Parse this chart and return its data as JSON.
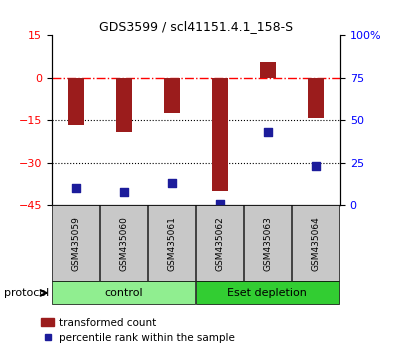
{
  "title": "GDS3599 / scl41151.4.1_158-S",
  "samples": [
    "GSM435059",
    "GSM435060",
    "GSM435061",
    "GSM435062",
    "GSM435063",
    "GSM435064"
  ],
  "transformed_count": [
    -16.5,
    -19.0,
    -12.5,
    -40.0,
    5.5,
    -14.0
  ],
  "percentile_rank": [
    10.0,
    8.0,
    13.0,
    1.0,
    43.0,
    23.0
  ],
  "left_ylim": [
    -45,
    15
  ],
  "left_yticks": [
    -45,
    -30,
    -15,
    0,
    15
  ],
  "right_ylim": [
    0,
    100
  ],
  "right_yticks": [
    0,
    25,
    50,
    75,
    100
  ],
  "bar_color": "#9B1C1C",
  "scatter_color": "#1C1C9B",
  "hline_y": 0,
  "dotted_lines": [
    -15,
    -30
  ],
  "groups": [
    {
      "label": "control",
      "samples": [
        0,
        1,
        2
      ],
      "color": "#90EE90"
    },
    {
      "label": "Eset depletion",
      "samples": [
        3,
        4,
        5
      ],
      "color": "#32CD32"
    }
  ],
  "protocol_label": "protocol",
  "legend_bar_label": "transformed count",
  "legend_scatter_label": "percentile rank within the sample",
  "background_color": "#ffffff"
}
